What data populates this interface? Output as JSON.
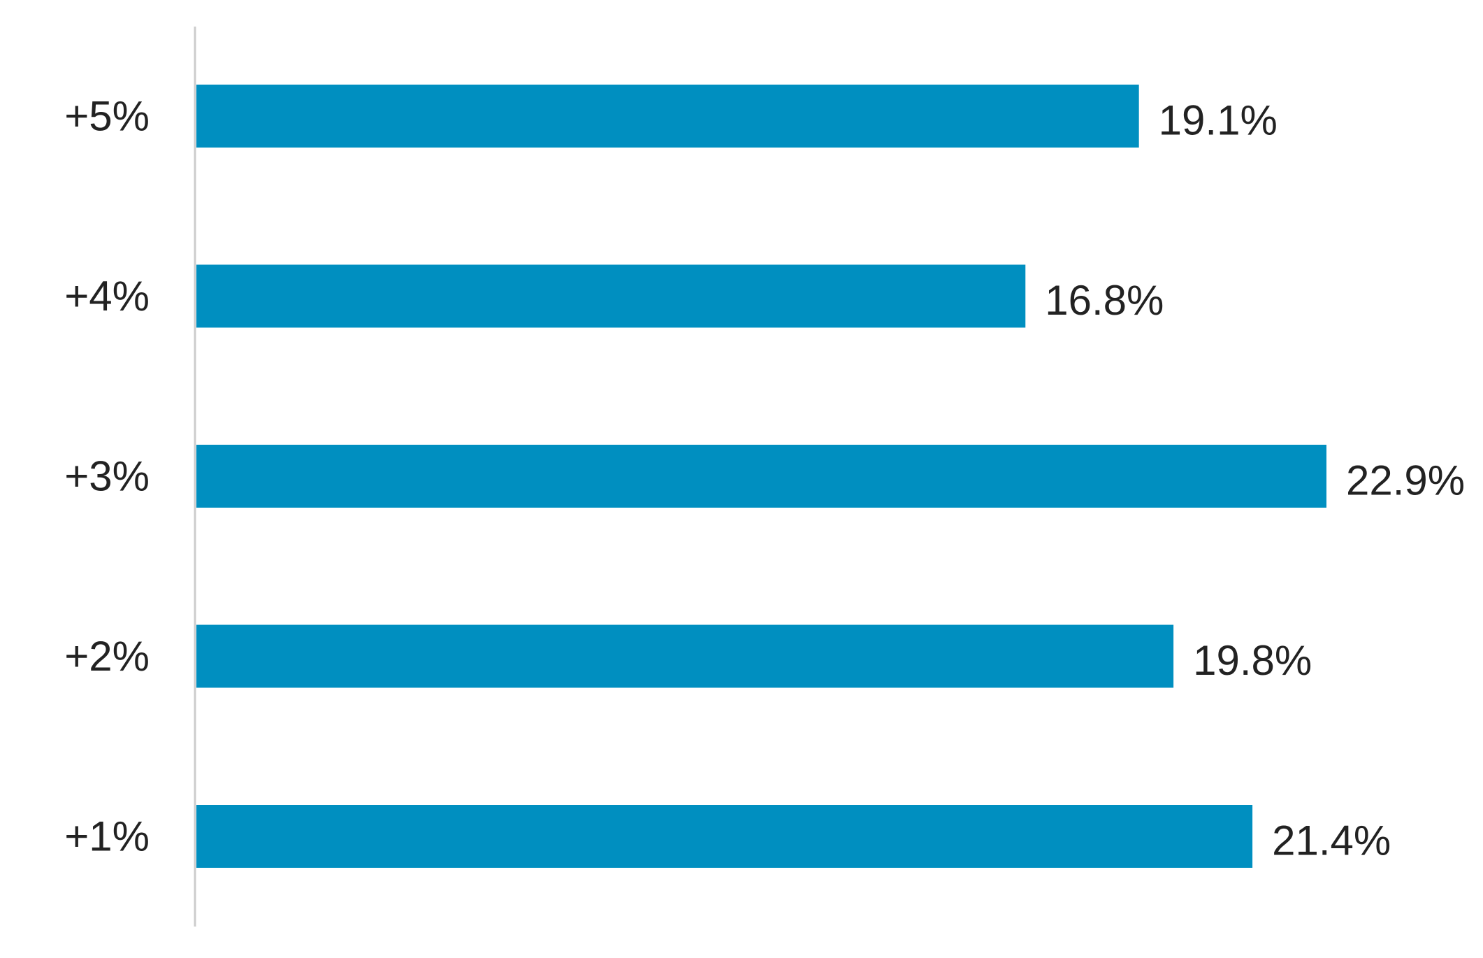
{
  "chart_data": {
    "type": "bar",
    "orientation": "horizontal",
    "categories": [
      "+5%",
      "+4%",
      "+3%",
      "+2%",
      "+1%"
    ],
    "values": [
      19.1,
      16.8,
      22.9,
      19.8,
      21.4
    ],
    "value_labels": [
      "19.1%",
      "16.8%",
      "22.9%",
      "19.8%",
      "21.4%"
    ],
    "xlim": [
      0,
      22.9
    ],
    "title": "",
    "xlabel": "",
    "ylabel": "",
    "grid": false,
    "legend": "none",
    "bar_color": "#008FC0",
    "axis_color": "#CCCCCC",
    "text_color": "#222222"
  }
}
